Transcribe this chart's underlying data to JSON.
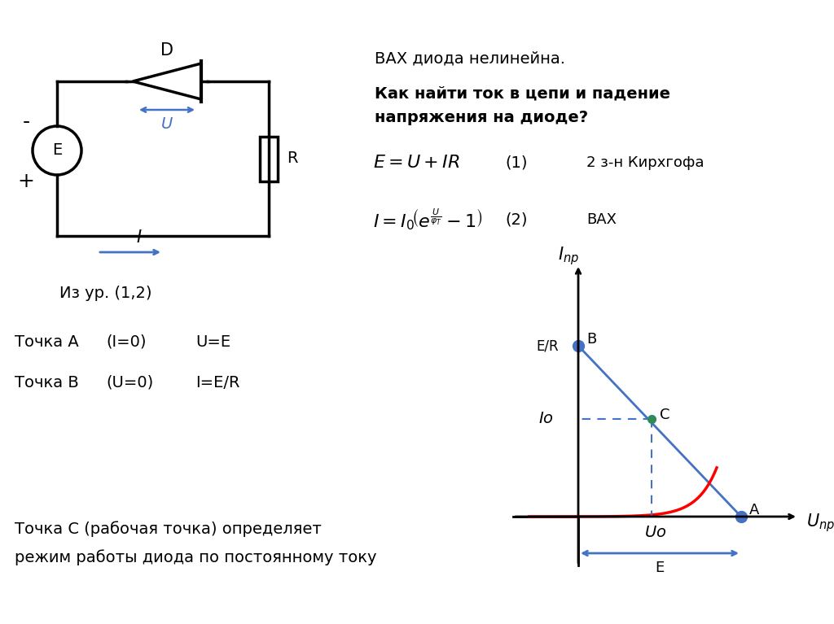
{
  "bg_color": "#ffffff",
  "text_color": "#000000",
  "blue_color": "#4472C4",
  "red_color": "#FF0000",
  "dashed_color": "#4472C4",
  "circuit_title": "D",
  "circuit_E": "E",
  "circuit_R": "R",
  "circuit_U": "U",
  "circuit_I": "I",
  "circuit_minus": "-",
  "circuit_plus": "+",
  "text_vax": "ВАХ диода нелинейна.",
  "text_question_bold": "Как найти ток в цепи и падение\nнапряжения на диоде?",
  "text_eq1_label": "(1)",
  "text_eq1_comment": "2 з-н Кирхгофа",
  "text_eq2_label": "(2)",
  "text_eq2_comment": "ВАХ",
  "text_from_eq": "Из ур. (1,2)",
  "text_pointA": "Точка А",
  "text_pointA_cond": "(I=0)",
  "text_pointA_val": "U=E",
  "text_pointB": "Точка В",
  "text_pointB_cond": "(U=0)",
  "text_pointB_val": "I=E/R",
  "text_pointC": "Точка С (рабочая точка) определяет\nрежим работы диода по постоянному току",
  "graph_xlabel": "$U_{np}$",
  "graph_ylabel": "$I_{np}$",
  "graph_B_label": "B",
  "graph_ER_label": "E/R",
  "graph_C_label": "C",
  "graph_Io_label": "$Io$",
  "graph_Uo_label": "$Uo$",
  "graph_A_label": "A",
  "graph_E_label": "E"
}
